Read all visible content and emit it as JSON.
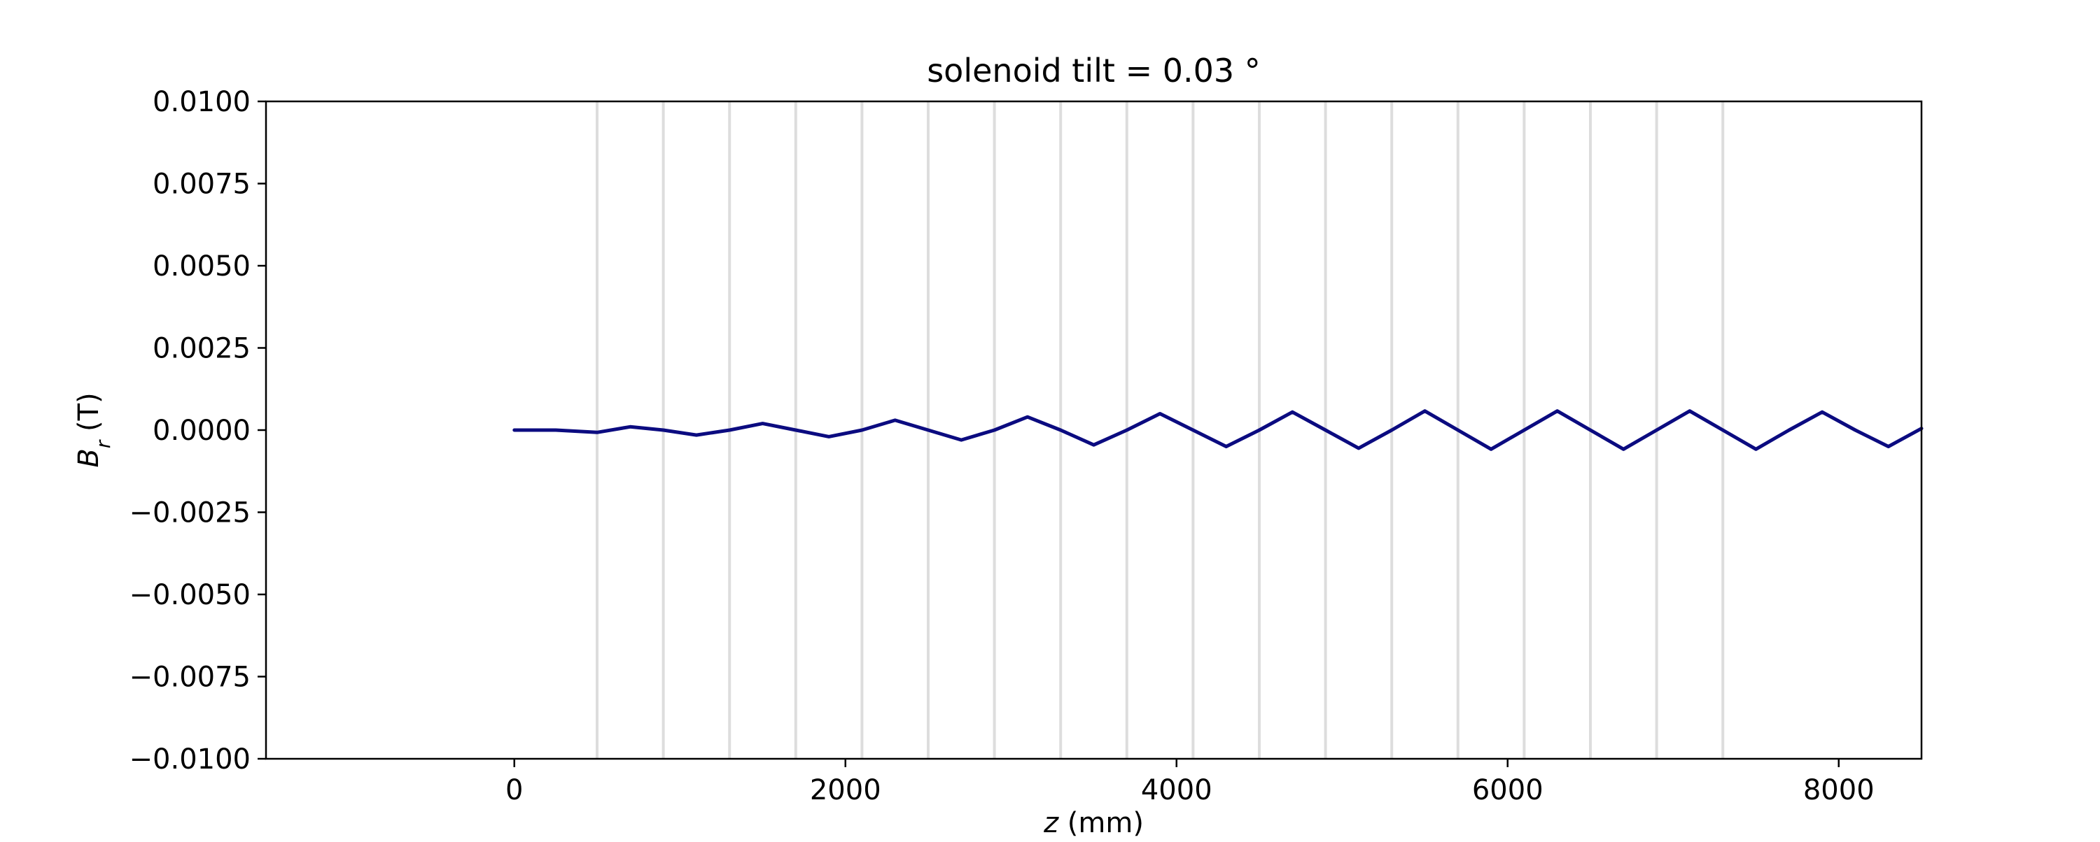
{
  "chart_data": {
    "type": "line",
    "title": "solenoid tilt = 0.03 °",
    "xlabel": {
      "var": "z",
      "unit": " (mm)"
    },
    "ylabel": {
      "var": "B",
      "sub": "r",
      "unit": " (T)"
    },
    "xlim": [
      -1500,
      8500
    ],
    "ylim": [
      -0.01,
      0.01
    ],
    "xticks": [
      0,
      2000,
      4000,
      6000,
      8000
    ],
    "xtick_labels": [
      "0",
      "2000",
      "4000",
      "6000",
      "8000"
    ],
    "yticks": [
      0.01,
      0.0075,
      0.005,
      0.0025,
      0.0,
      -0.0025,
      -0.005,
      -0.0075,
      -0.01
    ],
    "ytick_labels": [
      "0.0100",
      "0.0075",
      "0.0050",
      "0.0025",
      "0.0000",
      "−0.0025",
      "−0.0050",
      "−0.0075",
      "−0.0100"
    ],
    "grid": false,
    "vertical_markers": [
      500,
      900,
      1300,
      1700,
      2100,
      2500,
      2900,
      3300,
      3700,
      4100,
      4500,
      4900,
      5300,
      5700,
      6100,
      6500,
      6900,
      7300
    ],
    "marker_color": "#dddddd",
    "series": [
      {
        "color": "#0b0b80",
        "x": [
          0,
          250,
          500,
          700,
          900,
          1100,
          1300,
          1500,
          1700,
          1900,
          2100,
          2300,
          2500,
          2700,
          2900,
          3100,
          3300,
          3500,
          3700,
          3900,
          4100,
          4300,
          4500,
          4700,
          4900,
          5100,
          5300,
          5500,
          5700,
          5900,
          6100,
          6300,
          6500,
          6700,
          6900,
          7100,
          7300,
          7500,
          7700,
          7900,
          8100,
          8300,
          8500
        ],
        "y": [
          0.0,
          0.0,
          -7e-05,
          0.0001,
          0.0,
          -0.00015,
          0.0,
          0.0002,
          0.0,
          -0.0002,
          0.0,
          0.0003,
          0.0,
          -0.0003,
          0.0,
          0.0004,
          0.0,
          -0.00045,
          0.0,
          0.0005,
          0.0,
          -0.0005,
          0.0,
          0.00055,
          0.0,
          -0.00055,
          0.0,
          0.00058,
          0.0,
          -0.00058,
          0.0,
          0.00058,
          0.0,
          -0.00058,
          0.0,
          0.00058,
          0.0,
          -0.00058,
          0.0,
          0.00055,
          0.0,
          -0.0005,
          5e-05
        ]
      }
    ]
  }
}
